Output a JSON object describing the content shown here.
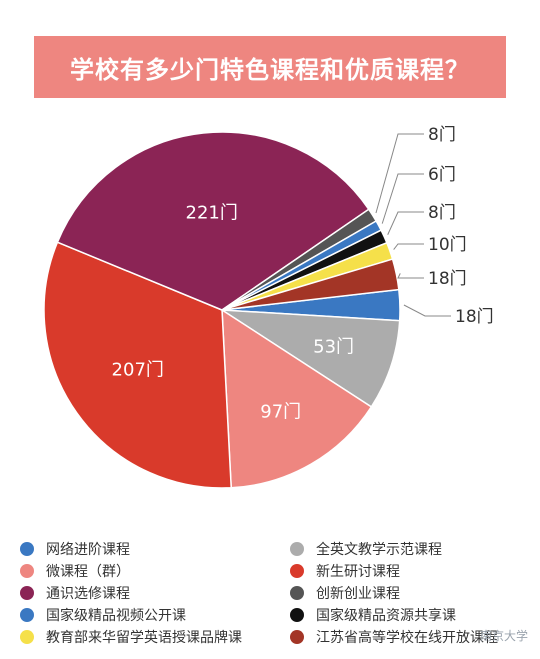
{
  "title": "学校有多少门特色课程和优质课程？",
  "watermark": "南京大学",
  "chart_data": {
    "type": "pie",
    "unit": "门",
    "slices": [
      {
        "name": "网络进阶课程",
        "value": 18,
        "label": "18门",
        "color": "#3a78c2"
      },
      {
        "name": "全英文教学示范课程",
        "value": 53,
        "label": "53门",
        "color": "#acacac"
      },
      {
        "name": "微课程（群）",
        "value": 97,
        "label": "97门",
        "color": "#ee8680"
      },
      {
        "name": "新生研讨课程",
        "value": 207,
        "label": "207门",
        "color": "#d93a2b"
      },
      {
        "name": "通识选修课程",
        "value": 221,
        "label": "221门",
        "color": "#8b2455"
      },
      {
        "name": "创新创业课程",
        "value": 8,
        "label": "8门",
        "color": "#555555"
      },
      {
        "name": "国家级精品视频公开课",
        "value": 6,
        "label": "6门",
        "color": "#3a78c2"
      },
      {
        "name": "国家级精品资源共享课",
        "value": 8,
        "label": "8门",
        "color": "#111111"
      },
      {
        "name": "教育部来华留学英语授课品牌课",
        "value": 10,
        "label": "10门",
        "color": "#f5e04a"
      },
      {
        "name": "江苏省高等学校在线开放课程",
        "value": 18,
        "label": "18门",
        "color": "#a33526"
      }
    ],
    "legend_position": "bottom"
  },
  "legend": [
    {
      "label": "网络进阶课程",
      "color": "#3a78c2"
    },
    {
      "label": "全英文教学示范课程",
      "color": "#acacac"
    },
    {
      "label": "微课程（群）",
      "color": "#ee8680"
    },
    {
      "label": "新生研讨课程",
      "color": "#d93a2b"
    },
    {
      "label": "通识选修课程",
      "color": "#8b2455"
    },
    {
      "label": "创新创业课程",
      "color": "#555555"
    },
    {
      "label": "国家级精品视频公开课",
      "color": "#3a78c2"
    },
    {
      "label": "国家级精品资源共享课",
      "color": "#111111"
    },
    {
      "label": "教育部来华留学英语授课品牌课",
      "color": "#f5e04a"
    },
    {
      "label": "江苏省高等学校在线开放课程",
      "color": "#a33526"
    }
  ]
}
